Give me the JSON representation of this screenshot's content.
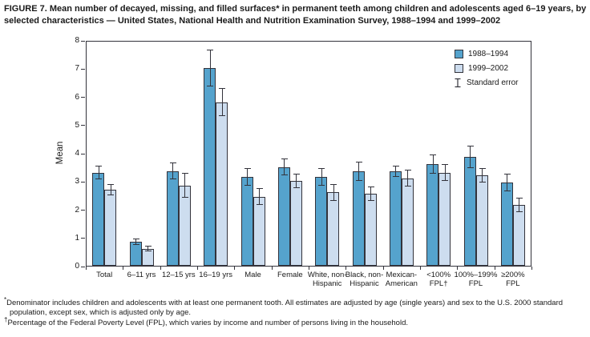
{
  "figure": {
    "title": "FIGURE 7. Mean number of decayed, missing, and filled surfaces* in permanent teeth among children and adolescents aged 6–19 years, by selected characteristics — United States, National Health and Nutrition Examination Survey, 1988–1994 and 1999–2002"
  },
  "chart_data": {
    "type": "bar",
    "title": "",
    "xlabel": "",
    "ylabel": "Mean",
    "ylim": [
      0,
      8
    ],
    "yticks": [
      0,
      1,
      2,
      3,
      4,
      5,
      6,
      7,
      8
    ],
    "grid": false,
    "legend_position": "top-right",
    "legend": [
      {
        "label": "1988–1994",
        "color": "#55a3cd",
        "icon": "filled-square"
      },
      {
        "label": "1999–2002",
        "color": "#cdddef",
        "icon": "filled-square"
      },
      {
        "label": "Standard error",
        "icon": "error-bar"
      }
    ],
    "categories": [
      "Total",
      "6–11 yrs",
      "12–15 yrs",
      "16–19 yrs",
      "Male",
      "Female",
      "White, non-\nHispanic",
      "Black, non-\nHispanic",
      "Mexican-\nAmerican",
      "<100%\nFPL†",
      "100%–199%\nFPL",
      "≥200%\nFPL"
    ],
    "series": [
      {
        "name": "1988–1994",
        "color": "#55a3cd",
        "values": [
          3.3,
          0.85,
          3.35,
          7.0,
          3.15,
          3.5,
          3.15,
          3.35,
          3.35,
          3.6,
          3.85,
          2.95
        ],
        "std_errors": [
          0.25,
          0.12,
          0.3,
          0.65,
          0.3,
          0.3,
          0.3,
          0.35,
          0.2,
          0.35,
          0.4,
          0.3
        ]
      },
      {
        "name": "1999–2002",
        "color": "#cdddef",
        "values": [
          2.7,
          0.6,
          2.85,
          5.8,
          2.45,
          3.0,
          2.6,
          2.55,
          3.1,
          3.3,
          3.2,
          2.15
        ],
        "std_errors": [
          0.2,
          0.1,
          0.45,
          0.5,
          0.3,
          0.25,
          0.3,
          0.25,
          0.3,
          0.3,
          0.25,
          0.25
        ]
      }
    ]
  },
  "footnotes": [
    {
      "marker": "*",
      "text": "Denominator includes children and adolescents with at least one permanent tooth. All estimates are adjusted by age (single years) and sex to the U.S. 2000 standard population, except sex, which is adjusted only by age."
    },
    {
      "marker": "†",
      "text": "Percentage of the Federal Poverty Level (FPL), which varies by income and number of persons living in the household."
    }
  ]
}
